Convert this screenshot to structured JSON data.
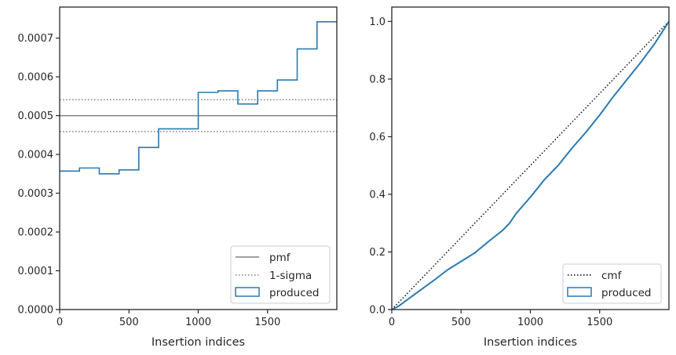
{
  "chart_data": [
    {
      "type": "step",
      "xlabel": "Insertion indices",
      "ylabel": "",
      "xlim": [
        0,
        2000
      ],
      "ylim": [
        0,
        0.00078
      ],
      "xticks": [
        0,
        500,
        1000,
        1500
      ],
      "yticks": [
        0,
        0.0001,
        0.0002,
        0.0003,
        0.0004,
        0.0005,
        0.0006,
        0.0007
      ],
      "ytick_labels": [
        "0.0000",
        "0.0001",
        "0.0002",
        "0.0003",
        "0.0004",
        "0.0005",
        "0.0006",
        "0.0007"
      ],
      "legend_position": "lower-right",
      "hlines": [
        {
          "name": "pmf",
          "y": 0.0005,
          "style": "solid",
          "color": "#808080"
        },
        {
          "name": "1-sigma",
          "y": 0.000541,
          "style": "dotted",
          "color": "#808080"
        },
        {
          "name": "1-sigma",
          "y": 0.000459,
          "style": "dotted",
          "color": "#808080"
        }
      ],
      "series": [
        {
          "name": "produced",
          "color": "#2a7ab0",
          "bin_edges": [
            0,
            143,
            286,
            429,
            571,
            714,
            857,
            1000,
            1143,
            1286,
            1429,
            1571,
            1714,
            1857,
            2000
          ],
          "values": [
            0.000357,
            0.000365,
            0.00035,
            0.00036,
            0.000418,
            0.000466,
            0.000466,
            0.00056,
            0.000564,
            0.00053,
            0.000564,
            0.000592,
            0.000672,
            0.000742
          ]
        }
      ],
      "legend": [
        "pmf",
        "1-sigma",
        "produced"
      ]
    },
    {
      "type": "line",
      "xlabel": "Insertion indices",
      "ylabel": "",
      "xlim": [
        0,
        2000
      ],
      "ylim": [
        0,
        1.05
      ],
      "xticks": [
        0,
        500,
        1000,
        1500
      ],
      "yticks": [
        0,
        0.2,
        0.4,
        0.6,
        0.8,
        1.0
      ],
      "ytick_labels": [
        "0.0",
        "0.2",
        "0.4",
        "0.6",
        "0.8",
        "1.0"
      ],
      "legend_position": "lower-right",
      "series": [
        {
          "name": "cmf",
          "style": "dotted",
          "color": "#000000",
          "x": [
            0,
            2000
          ],
          "y": [
            0,
            1.0
          ]
        },
        {
          "name": "produced",
          "color": "#2a7ab0",
          "x": [
            0,
            50,
            100,
            200,
            300,
            400,
            500,
            600,
            700,
            800,
            850,
            900,
            1000,
            1100,
            1200,
            1300,
            1400,
            1500,
            1600,
            1700,
            1800,
            1900,
            2000
          ],
          "y": [
            0,
            0.012,
            0.03,
            0.065,
            0.1,
            0.137,
            0.167,
            0.197,
            0.237,
            0.275,
            0.3,
            0.335,
            0.39,
            0.45,
            0.5,
            0.56,
            0.615,
            0.675,
            0.74,
            0.8,
            0.86,
            0.925,
            1.0
          ]
        }
      ],
      "legend": [
        "cmf",
        "produced"
      ]
    }
  ]
}
